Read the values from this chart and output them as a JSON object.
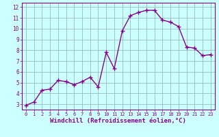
{
  "x": [
    0,
    1,
    2,
    3,
    4,
    5,
    6,
    7,
    8,
    9,
    10,
    11,
    12,
    13,
    14,
    15,
    16,
    17,
    18,
    19,
    20,
    21,
    22,
    23
  ],
  "y": [
    2.9,
    3.2,
    4.3,
    4.4,
    5.2,
    5.1,
    4.8,
    5.1,
    5.5,
    4.6,
    7.8,
    6.3,
    9.8,
    11.2,
    11.5,
    11.7,
    11.7,
    10.8,
    10.6,
    10.2,
    8.3,
    8.2,
    7.5,
    7.6
  ],
  "line_color": "#880088",
  "marker": "+",
  "markersize": 4,
  "linewidth": 1.0,
  "background_color": "#ccffff",
  "grid_color": "#99bbbb",
  "xlabel": "Windchill (Refroidissement éolien,°C)",
  "xlabel_fontsize": 6.5,
  "ylabel_ticks": [
    3,
    4,
    5,
    6,
    7,
    8,
    9,
    10,
    11,
    12
  ],
  "xtick_labels": [
    "0",
    "1",
    "2",
    "3",
    "4",
    "5",
    "6",
    "7",
    "8",
    "9",
    "10",
    "11",
    "12",
    "13",
    "14",
    "15",
    "16",
    "17",
    "18",
    "19",
    "20",
    "21",
    "22",
    "23"
  ],
  "ylim": [
    2.5,
    12.4
  ],
  "xlim": [
    -0.5,
    23.5
  ]
}
